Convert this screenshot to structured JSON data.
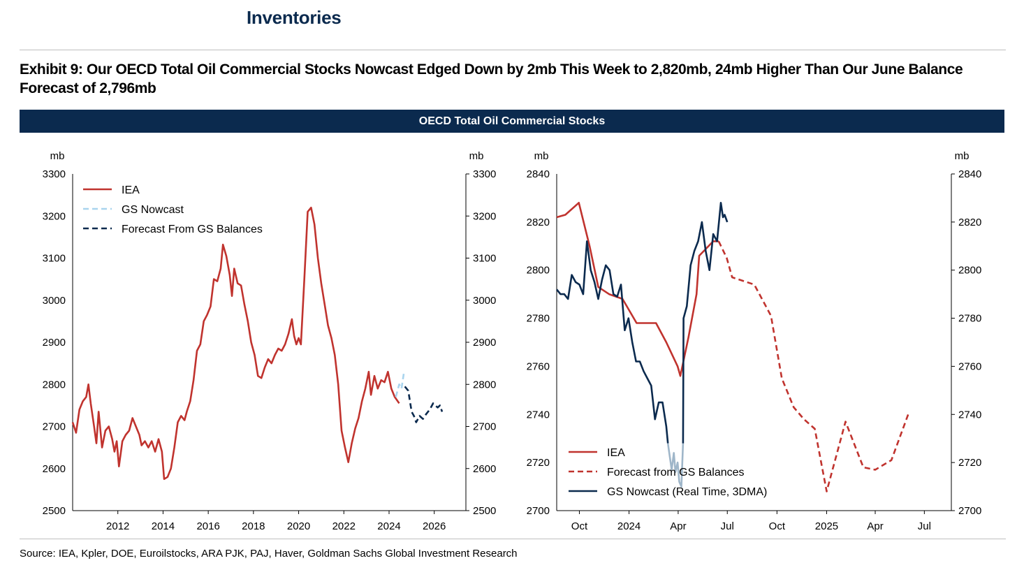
{
  "header": {
    "section_title": "Inventories",
    "exhibit_title": "Exhibit 9: Our OECD Total Oil Commercial Stocks Nowcast Edged Down by 2mb This Week to 2,820mb, 24mb Higher Than Our June Balance Forecast of 2,796mb",
    "banner": "OECD Total Oil Commercial Stocks"
  },
  "source": "Source: IEA, Kpler, DOE, Euroilstocks, ARA PJK, PAJ, Haver, Goldman Sachs Global Investment Research",
  "colors": {
    "iea": "#c0332e",
    "nowcast_light": "#a9d4ee",
    "forecast_dark": "#0b2a4e",
    "nowcast_dark": "#0b2a4e",
    "nowcast_faded": "#9fb6c9",
    "banner": "#0b2a4e"
  },
  "chart_data": [
    {
      "type": "line",
      "ylabel_left": "mb",
      "ylabel_right": "mb",
      "xlim": [
        2010.0,
        2027.4
      ],
      "ylim": [
        2500,
        3300
      ],
      "yticks": [
        2500,
        2600,
        2700,
        2800,
        2900,
        3000,
        3100,
        3200,
        3300
      ],
      "xticks": [
        2012,
        2014,
        2016,
        2018,
        2020,
        2022,
        2024,
        2026
      ],
      "legend_position": "top-left",
      "legend": [
        "IEA",
        "GS Nowcast",
        "Forecast From GS Balances"
      ],
      "series": [
        {
          "name": "IEA",
          "style": "solid",
          "color_key": "iea",
          "points": [
            [
              2010.0,
              2710
            ],
            [
              2010.15,
              2685
            ],
            [
              2010.3,
              2740
            ],
            [
              2010.45,
              2760
            ],
            [
              2010.6,
              2770
            ],
            [
              2010.7,
              2800
            ],
            [
              2010.8,
              2755
            ],
            [
              2010.95,
              2700
            ],
            [
              2011.05,
              2660
            ],
            [
              2011.15,
              2735
            ],
            [
              2011.3,
              2650
            ],
            [
              2011.45,
              2690
            ],
            [
              2011.6,
              2700
            ],
            [
              2011.75,
              2670
            ],
            [
              2011.85,
              2640
            ],
            [
              2011.95,
              2665
            ],
            [
              2012.05,
              2605
            ],
            [
              2012.2,
              2665
            ],
            [
              2012.35,
              2680
            ],
            [
              2012.5,
              2690
            ],
            [
              2012.65,
              2720
            ],
            [
              2012.8,
              2700
            ],
            [
              2012.95,
              2680
            ],
            [
              2013.05,
              2655
            ],
            [
              2013.2,
              2665
            ],
            [
              2013.35,
              2650
            ],
            [
              2013.5,
              2665
            ],
            [
              2013.65,
              2640
            ],
            [
              2013.8,
              2670
            ],
            [
              2013.95,
              2640
            ],
            [
              2014.05,
              2575
            ],
            [
              2014.2,
              2580
            ],
            [
              2014.35,
              2600
            ],
            [
              2014.5,
              2650
            ],
            [
              2014.65,
              2710
            ],
            [
              2014.8,
              2725
            ],
            [
              2014.95,
              2715
            ],
            [
              2015.05,
              2735
            ],
            [
              2015.2,
              2760
            ],
            [
              2015.35,
              2810
            ],
            [
              2015.5,
              2880
            ],
            [
              2015.65,
              2895
            ],
            [
              2015.8,
              2950
            ],
            [
              2015.95,
              2965
            ],
            [
              2016.1,
              2985
            ],
            [
              2016.25,
              3050
            ],
            [
              2016.4,
              3045
            ],
            [
              2016.55,
              3075
            ],
            [
              2016.65,
              3132
            ],
            [
              2016.8,
              3105
            ],
            [
              2016.95,
              3060
            ],
            [
              2017.05,
              3010
            ],
            [
              2017.15,
              3075
            ],
            [
              2017.3,
              3040
            ],
            [
              2017.45,
              3035
            ],
            [
              2017.6,
              2990
            ],
            [
              2017.75,
              2950
            ],
            [
              2017.9,
              2900
            ],
            [
              2018.05,
              2870
            ],
            [
              2018.2,
              2820
            ],
            [
              2018.35,
              2815
            ],
            [
              2018.5,
              2840
            ],
            [
              2018.65,
              2860
            ],
            [
              2018.8,
              2850
            ],
            [
              2018.95,
              2870
            ],
            [
              2019.1,
              2885
            ],
            [
              2019.25,
              2880
            ],
            [
              2019.4,
              2895
            ],
            [
              2019.55,
              2920
            ],
            [
              2019.7,
              2955
            ],
            [
              2019.8,
              2915
            ],
            [
              2019.9,
              2895
            ],
            [
              2020.0,
              2910
            ],
            [
              2020.1,
              2895
            ],
            [
              2020.25,
              3050
            ],
            [
              2020.4,
              3210
            ],
            [
              2020.55,
              3220
            ],
            [
              2020.7,
              3180
            ],
            [
              2020.85,
              3100
            ],
            [
              2021.0,
              3040
            ],
            [
              2021.15,
              2990
            ],
            [
              2021.3,
              2940
            ],
            [
              2021.45,
              2910
            ],
            [
              2021.6,
              2870
            ],
            [
              2021.75,
              2800
            ],
            [
              2021.9,
              2690
            ],
            [
              2022.05,
              2650
            ],
            [
              2022.2,
              2615
            ],
            [
              2022.35,
              2660
            ],
            [
              2022.5,
              2695
            ],
            [
              2022.65,
              2720
            ],
            [
              2022.8,
              2760
            ],
            [
              2022.95,
              2790
            ],
            [
              2023.1,
              2830
            ],
            [
              2023.2,
              2775
            ],
            [
              2023.35,
              2820
            ],
            [
              2023.5,
              2790
            ],
            [
              2023.65,
              2810
            ],
            [
              2023.8,
              2805
            ],
            [
              2023.95,
              2830
            ],
            [
              2024.1,
              2790
            ],
            [
              2024.25,
              2770
            ],
            [
              2024.45,
              2755
            ]
          ]
        },
        {
          "name": "GS Nowcast",
          "style": "dashed",
          "color_key": "nowcast_light",
          "points": [
            [
              2024.3,
              2770
            ],
            [
              2024.45,
              2800
            ],
            [
              2024.55,
              2790
            ],
            [
              2024.65,
              2825
            ]
          ]
        },
        {
          "name": "Forecast From GS Balances",
          "style": "dashed",
          "color_key": "forecast_dark",
          "points": [
            [
              2024.7,
              2795
            ],
            [
              2024.85,
              2785
            ],
            [
              2025.0,
              2735
            ],
            [
              2025.1,
              2725
            ],
            [
              2025.2,
              2710
            ],
            [
              2025.35,
              2725
            ],
            [
              2025.5,
              2718
            ],
            [
              2025.65,
              2730
            ],
            [
              2025.8,
              2740
            ],
            [
              2025.95,
              2755
            ],
            [
              2026.05,
              2750
            ],
            [
              2026.15,
              2745
            ],
            [
              2026.25,
              2750
            ],
            [
              2026.35,
              2735
            ]
          ]
        }
      ]
    },
    {
      "type": "line",
      "ylabel_left": "mb",
      "ylabel_right": "mb",
      "ylim": [
        2700,
        2840
      ],
      "yticks": [
        2700,
        2720,
        2740,
        2760,
        2780,
        2800,
        2820,
        2840
      ],
      "xticks": [
        "Oct",
        "2024",
        "Apr",
        "Jul",
        "Oct",
        "2025",
        "Apr",
        "Jul"
      ],
      "xtick_dates": [
        "2023-10-01",
        "2024-01-01",
        "2024-04-01",
        "2024-07-01",
        "2024-10-01",
        "2025-01-01",
        "2025-04-01",
        "2025-07-01"
      ],
      "xlim": [
        "2023-08-20",
        "2025-08-20"
      ],
      "legend_position": "bottom-left",
      "legend": [
        "IEA",
        "Forecast from GS Balances",
        "GS Nowcast (Real Time, 3DMA)"
      ],
      "series": [
        {
          "name": "IEA",
          "style": "solid",
          "color_key": "iea",
          "points": [
            [
              "2023-08-20",
              2822
            ],
            [
              "2023-09-05",
              2823
            ],
            [
              "2023-09-30",
              2828
            ],
            [
              "2023-10-20",
              2810
            ],
            [
              "2023-11-05",
              2793
            ],
            [
              "2023-11-25",
              2790
            ],
            [
              "2023-12-20",
              2788
            ],
            [
              "2024-01-15",
              2778
            ],
            [
              "2024-02-20",
              2778
            ],
            [
              "2024-03-10",
              2770
            ],
            [
              "2024-03-31",
              2760
            ],
            [
              "2024-04-05",
              2756
            ],
            [
              "2024-04-20",
              2772
            ],
            [
              "2024-05-05",
              2790
            ],
            [
              "2024-05-10",
              2806
            ],
            [
              "2024-06-05",
              2812
            ],
            [
              "2024-06-15",
              2812
            ]
          ]
        },
        {
          "name": "Forecast from GS Balances",
          "style": "dashed",
          "color_key": "iea",
          "points": [
            [
              "2024-06-15",
              2812
            ],
            [
              "2024-06-30",
              2805
            ],
            [
              "2024-07-10",
              2797
            ],
            [
              "2024-08-20",
              2794
            ],
            [
              "2024-09-20",
              2781
            ],
            [
              "2024-10-10",
              2755
            ],
            [
              "2024-11-01",
              2743
            ],
            [
              "2024-11-20",
              2738
            ],
            [
              "2024-12-10",
              2734
            ],
            [
              "2025-01-01",
              2708
            ],
            [
              "2025-02-05",
              2737
            ],
            [
              "2025-03-10",
              2718
            ],
            [
              "2025-04-01",
              2717
            ],
            [
              "2025-05-01",
              2721
            ],
            [
              "2025-06-01",
              2740
            ]
          ]
        },
        {
          "name": "GS Nowcast (Real Time, 3DMA)",
          "style": "solid",
          "color_key": "nowcast_dark",
          "points": [
            [
              "2023-08-20",
              2792
            ],
            [
              "2023-08-27",
              2790
            ],
            [
              "2023-09-03",
              2790
            ],
            [
              "2023-09-10",
              2788
            ],
            [
              "2023-09-17",
              2798
            ],
            [
              "2023-09-24",
              2795
            ],
            [
              "2023-10-01",
              2794
            ],
            [
              "2023-10-08",
              2790
            ],
            [
              "2023-10-15",
              2812
            ],
            [
              "2023-10-22",
              2800
            ],
            [
              "2023-10-29",
              2795
            ],
            [
              "2023-11-05",
              2788
            ],
            [
              "2023-11-12",
              2796
            ],
            [
              "2023-11-19",
              2802
            ],
            [
              "2023-11-26",
              2800
            ],
            [
              "2023-12-03",
              2790
            ],
            [
              "2023-12-10",
              2789
            ],
            [
              "2023-12-17",
              2794
            ],
            [
              "2023-12-24",
              2775
            ],
            [
              "2023-12-31",
              2780
            ],
            [
              "2024-01-07",
              2770
            ],
            [
              "2024-01-14",
              2762
            ],
            [
              "2024-01-21",
              2762
            ],
            [
              "2024-01-28",
              2758
            ],
            [
              "2024-02-04",
              2755
            ],
            [
              "2024-02-11",
              2752
            ],
            [
              "2024-02-18",
              2738
            ],
            [
              "2024-02-25",
              2745
            ],
            [
              "2024-03-03",
              2745
            ],
            [
              "2024-03-10",
              2735
            ],
            [
              "2024-03-13",
              2728
            ]
          ]
        },
        {
          "name": "GS Nowcast (Real Time, 3DMA) faded",
          "style": "solid",
          "color_key": "nowcast_faded",
          "points": [
            [
              "2024-03-13",
              2728
            ],
            [
              "2024-03-20",
              2717
            ],
            [
              "2024-03-24",
              2724
            ],
            [
              "2024-03-27",
              2716
            ],
            [
              "2024-03-31",
              2720
            ],
            [
              "2024-04-03",
              2712
            ],
            [
              "2024-04-07",
              2710
            ],
            [
              "2024-04-10",
              2728
            ]
          ]
        },
        {
          "name": "GS Nowcast (Real Time, 3DMA) recent",
          "style": "solid",
          "color_key": "nowcast_dark",
          "points": [
            [
              "2024-04-10",
              2728
            ],
            [
              "2024-04-11",
              2780
            ],
            [
              "2024-04-17",
              2785
            ],
            [
              "2024-04-24",
              2802
            ],
            [
              "2024-05-01",
              2808
            ],
            [
              "2024-05-08",
              2812
            ],
            [
              "2024-05-15",
              2820
            ],
            [
              "2024-05-22",
              2808
            ],
            [
              "2024-05-29",
              2800
            ],
            [
              "2024-06-05",
              2815
            ],
            [
              "2024-06-12",
              2812
            ],
            [
              "2024-06-19",
              2828
            ],
            [
              "2024-06-23",
              2822
            ],
            [
              "2024-06-26",
              2823
            ],
            [
              "2024-07-01",
              2820
            ]
          ]
        }
      ]
    }
  ]
}
